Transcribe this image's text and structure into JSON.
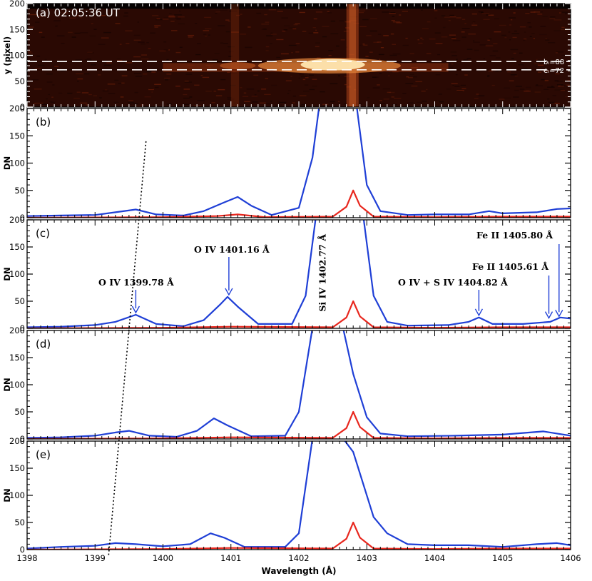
{
  "chart_data": {
    "type": "line",
    "xlabel": "Wavelength (Å)",
    "xlim": [
      1398,
      1406
    ],
    "x_ticks": [
      "1398",
      "1399",
      "1400",
      "1401",
      "1402",
      "1403",
      "1404",
      "1405",
      "1406"
    ],
    "panels": [
      {
        "label": "(a)",
        "kind": "spectrogram",
        "time": "02:05:36 UT",
        "ylabel": "y (pixel)",
        "ylim": [
          0,
          200
        ],
        "y_ticks": [
          "0",
          "50",
          "100",
          "150",
          "200"
        ],
        "lines": [
          {
            "label": "bᵢ=88",
            "y": 88
          },
          {
            "label": "eᵢ=72",
            "y": 72
          }
        ]
      },
      {
        "label": "(b)",
        "ylabel": "DN",
        "ylim": [
          0,
          200
        ],
        "y_ticks": [
          "0",
          "50",
          "100",
          "150",
          "200"
        ],
        "series": [
          {
            "color": "#1f3fd6",
            "points": [
              [
                1398,
                3
              ],
              [
                1398.5,
                4
              ],
              [
                1399,
                5
              ],
              [
                1399.3,
                10
              ],
              [
                1399.6,
                15
              ],
              [
                1399.9,
                6
              ],
              [
                1400.3,
                4
              ],
              [
                1400.6,
                12
              ],
              [
                1400.9,
                28
              ],
              [
                1401.1,
                38
              ],
              [
                1401.3,
                22
              ],
              [
                1401.6,
                5
              ],
              [
                1402,
                18
              ],
              [
                1402.2,
                110
              ],
              [
                1402.3,
                205
              ],
              [
                1402.7,
                205
              ],
              [
                1402.85,
                205
              ],
              [
                1403.0,
                60
              ],
              [
                1403.2,
                12
              ],
              [
                1403.6,
                5
              ],
              [
                1404,
                6
              ],
              [
                1404.5,
                6
              ],
              [
                1404.8,
                12
              ],
              [
                1405,
                8
              ],
              [
                1405.5,
                10
              ],
              [
                1405.8,
                16
              ],
              [
                1406,
                17
              ]
            ]
          },
          {
            "color": "#e8271e",
            "points": [
              [
                1398,
                0
              ],
              [
                1400,
                1
              ],
              [
                1400.8,
                3
              ],
              [
                1401.1,
                6
              ],
              [
                1401.5,
                1
              ],
              [
                1402.5,
                2
              ],
              [
                1402.7,
                20
              ],
              [
                1402.8,
                50
              ],
              [
                1402.9,
                22
              ],
              [
                1403.1,
                2
              ],
              [
                1404,
                1
              ],
              [
                1405,
                2
              ],
              [
                1406,
                2
              ]
            ]
          }
        ]
      },
      {
        "label": "(c)",
        "ylabel": "DN",
        "ylim": [
          0,
          200
        ],
        "y_ticks": [
          "0",
          "50",
          "100",
          "150",
          "200"
        ],
        "series": [
          {
            "color": "#1f3fd6",
            "points": [
              [
                1398,
                2
              ],
              [
                1398.5,
                3
              ],
              [
                1399,
                6
              ],
              [
                1399.3,
                12
              ],
              [
                1399.6,
                25
              ],
              [
                1399.9,
                8
              ],
              [
                1400.3,
                4
              ],
              [
                1400.6,
                15
              ],
              [
                1400.85,
                45
              ],
              [
                1400.95,
                58
              ],
              [
                1401.1,
                40
              ],
              [
                1401.4,
                8
              ],
              [
                1401.9,
                8
              ],
              [
                1402.1,
                60
              ],
              [
                1402.25,
                205
              ],
              [
                1402.95,
                205
              ],
              [
                1403.1,
                60
              ],
              [
                1403.3,
                12
              ],
              [
                1403.6,
                5
              ],
              [
                1404.2,
                6
              ],
              [
                1404.5,
                12
              ],
              [
                1404.65,
                20
              ],
              [
                1404.85,
                8
              ],
              [
                1405.3,
                8
              ],
              [
                1405.7,
                12
              ],
              [
                1405.85,
                20
              ],
              [
                1406,
                18
              ]
            ]
          },
          {
            "color": "#e8271e",
            "points": [
              [
                1398,
                0
              ],
              [
                1400,
                1
              ],
              [
                1401,
                3
              ],
              [
                1402.5,
                2
              ],
              [
                1402.7,
                20
              ],
              [
                1402.8,
                50
              ],
              [
                1402.9,
                22
              ],
              [
                1403.1,
                2
              ],
              [
                1404,
                1
              ],
              [
                1405,
                2
              ],
              [
                1406,
                2
              ]
            ]
          }
        ],
        "annotations": [
          {
            "text": "O IV 1399.78 Å",
            "x": 1399.6,
            "y": 25
          },
          {
            "text": "O IV 1401.16 Å",
            "x": 1400.97,
            "y": 58
          },
          {
            "text": "Si IV 1402.77 Å",
            "x": 1402.77,
            "y": null
          },
          {
            "text": "O IV + S IV 1404.82 Å",
            "x": 1404.65,
            "y": 20
          },
          {
            "text": "Fe II 1405.61 Å",
            "x": 1405.68,
            "y": 15
          },
          {
            "text": "Fe II 1405.80 Å",
            "x": 1405.83,
            "y": 18
          }
        ]
      },
      {
        "label": "(d)",
        "ylabel": "DN",
        "ylim": [
          0,
          200
        ],
        "y_ticks": [
          "0",
          "50",
          "100",
          "150",
          "200"
        ],
        "series": [
          {
            "color": "#1f3fd6",
            "points": [
              [
                1398,
                2
              ],
              [
                1398.5,
                3
              ],
              [
                1399,
                6
              ],
              [
                1399.3,
                12
              ],
              [
                1399.5,
                15
              ],
              [
                1399.8,
                6
              ],
              [
                1400.2,
                4
              ],
              [
                1400.5,
                15
              ],
              [
                1400.75,
                38
              ],
              [
                1400.95,
                25
              ],
              [
                1401.3,
                5
              ],
              [
                1401.8,
                6
              ],
              [
                1402.0,
                50
              ],
              [
                1402.2,
                205
              ],
              [
                1402.65,
                205
              ],
              [
                1402.8,
                120
              ],
              [
                1402.9,
                80
              ],
              [
                1403.0,
                40
              ],
              [
                1403.2,
                10
              ],
              [
                1403.6,
                5
              ],
              [
                1404.3,
                6
              ],
              [
                1405,
                8
              ],
              [
                1405.6,
                14
              ],
              [
                1405.8,
                10
              ],
              [
                1406,
                6
              ]
            ]
          },
          {
            "color": "#e8271e",
            "points": [
              [
                1398,
                0
              ],
              [
                1400,
                1
              ],
              [
                1401,
                3
              ],
              [
                1402.5,
                2
              ],
              [
                1402.7,
                20
              ],
              [
                1402.8,
                50
              ],
              [
                1402.9,
                22
              ],
              [
                1403.1,
                2
              ],
              [
                1404,
                1
              ],
              [
                1405,
                2
              ],
              [
                1406,
                2
              ]
            ]
          }
        ]
      },
      {
        "label": "(e)",
        "ylabel": "DN",
        "ylim": [
          0,
          200
        ],
        "y_ticks": [
          "0",
          "50",
          "100",
          "150",
          "200"
        ],
        "series": [
          {
            "color": "#1f3fd6",
            "points": [
              [
                1398,
                2
              ],
              [
                1398.5,
                5
              ],
              [
                1399,
                7
              ],
              [
                1399.3,
                12
              ],
              [
                1399.6,
                10
              ],
              [
                1400,
                6
              ],
              [
                1400.4,
                10
              ],
              [
                1400.7,
                30
              ],
              [
                1400.9,
                22
              ],
              [
                1401.2,
                5
              ],
              [
                1401.8,
                5
              ],
              [
                1402.0,
                30
              ],
              [
                1402.2,
                205
              ],
              [
                1402.65,
                205
              ],
              [
                1402.8,
                180
              ],
              [
                1402.95,
                120
              ],
              [
                1403.1,
                60
              ],
              [
                1403.3,
                30
              ],
              [
                1403.6,
                10
              ],
              [
                1404,
                8
              ],
              [
                1404.5,
                8
              ],
              [
                1405,
                5
              ],
              [
                1405.5,
                10
              ],
              [
                1405.8,
                12
              ],
              [
                1406,
                8
              ]
            ]
          },
          {
            "color": "#e8271e",
            "points": [
              [
                1398,
                0
              ],
              [
                1400,
                1
              ],
              [
                1401,
                3
              ],
              [
                1402.5,
                2
              ],
              [
                1402.7,
                20
              ],
              [
                1402.8,
                50
              ],
              [
                1402.9,
                22
              ],
              [
                1403.1,
                2
              ],
              [
                1404,
                1
              ],
              [
                1405,
                2
              ],
              [
                1406,
                2
              ]
            ]
          }
        ]
      }
    ],
    "guide_line": {
      "style": "dotted",
      "from": [
        1399.75,
        140
      ],
      "to": [
        1399.2,
        -10
      ],
      "panels": [
        "(b)",
        "(e)"
      ]
    }
  }
}
